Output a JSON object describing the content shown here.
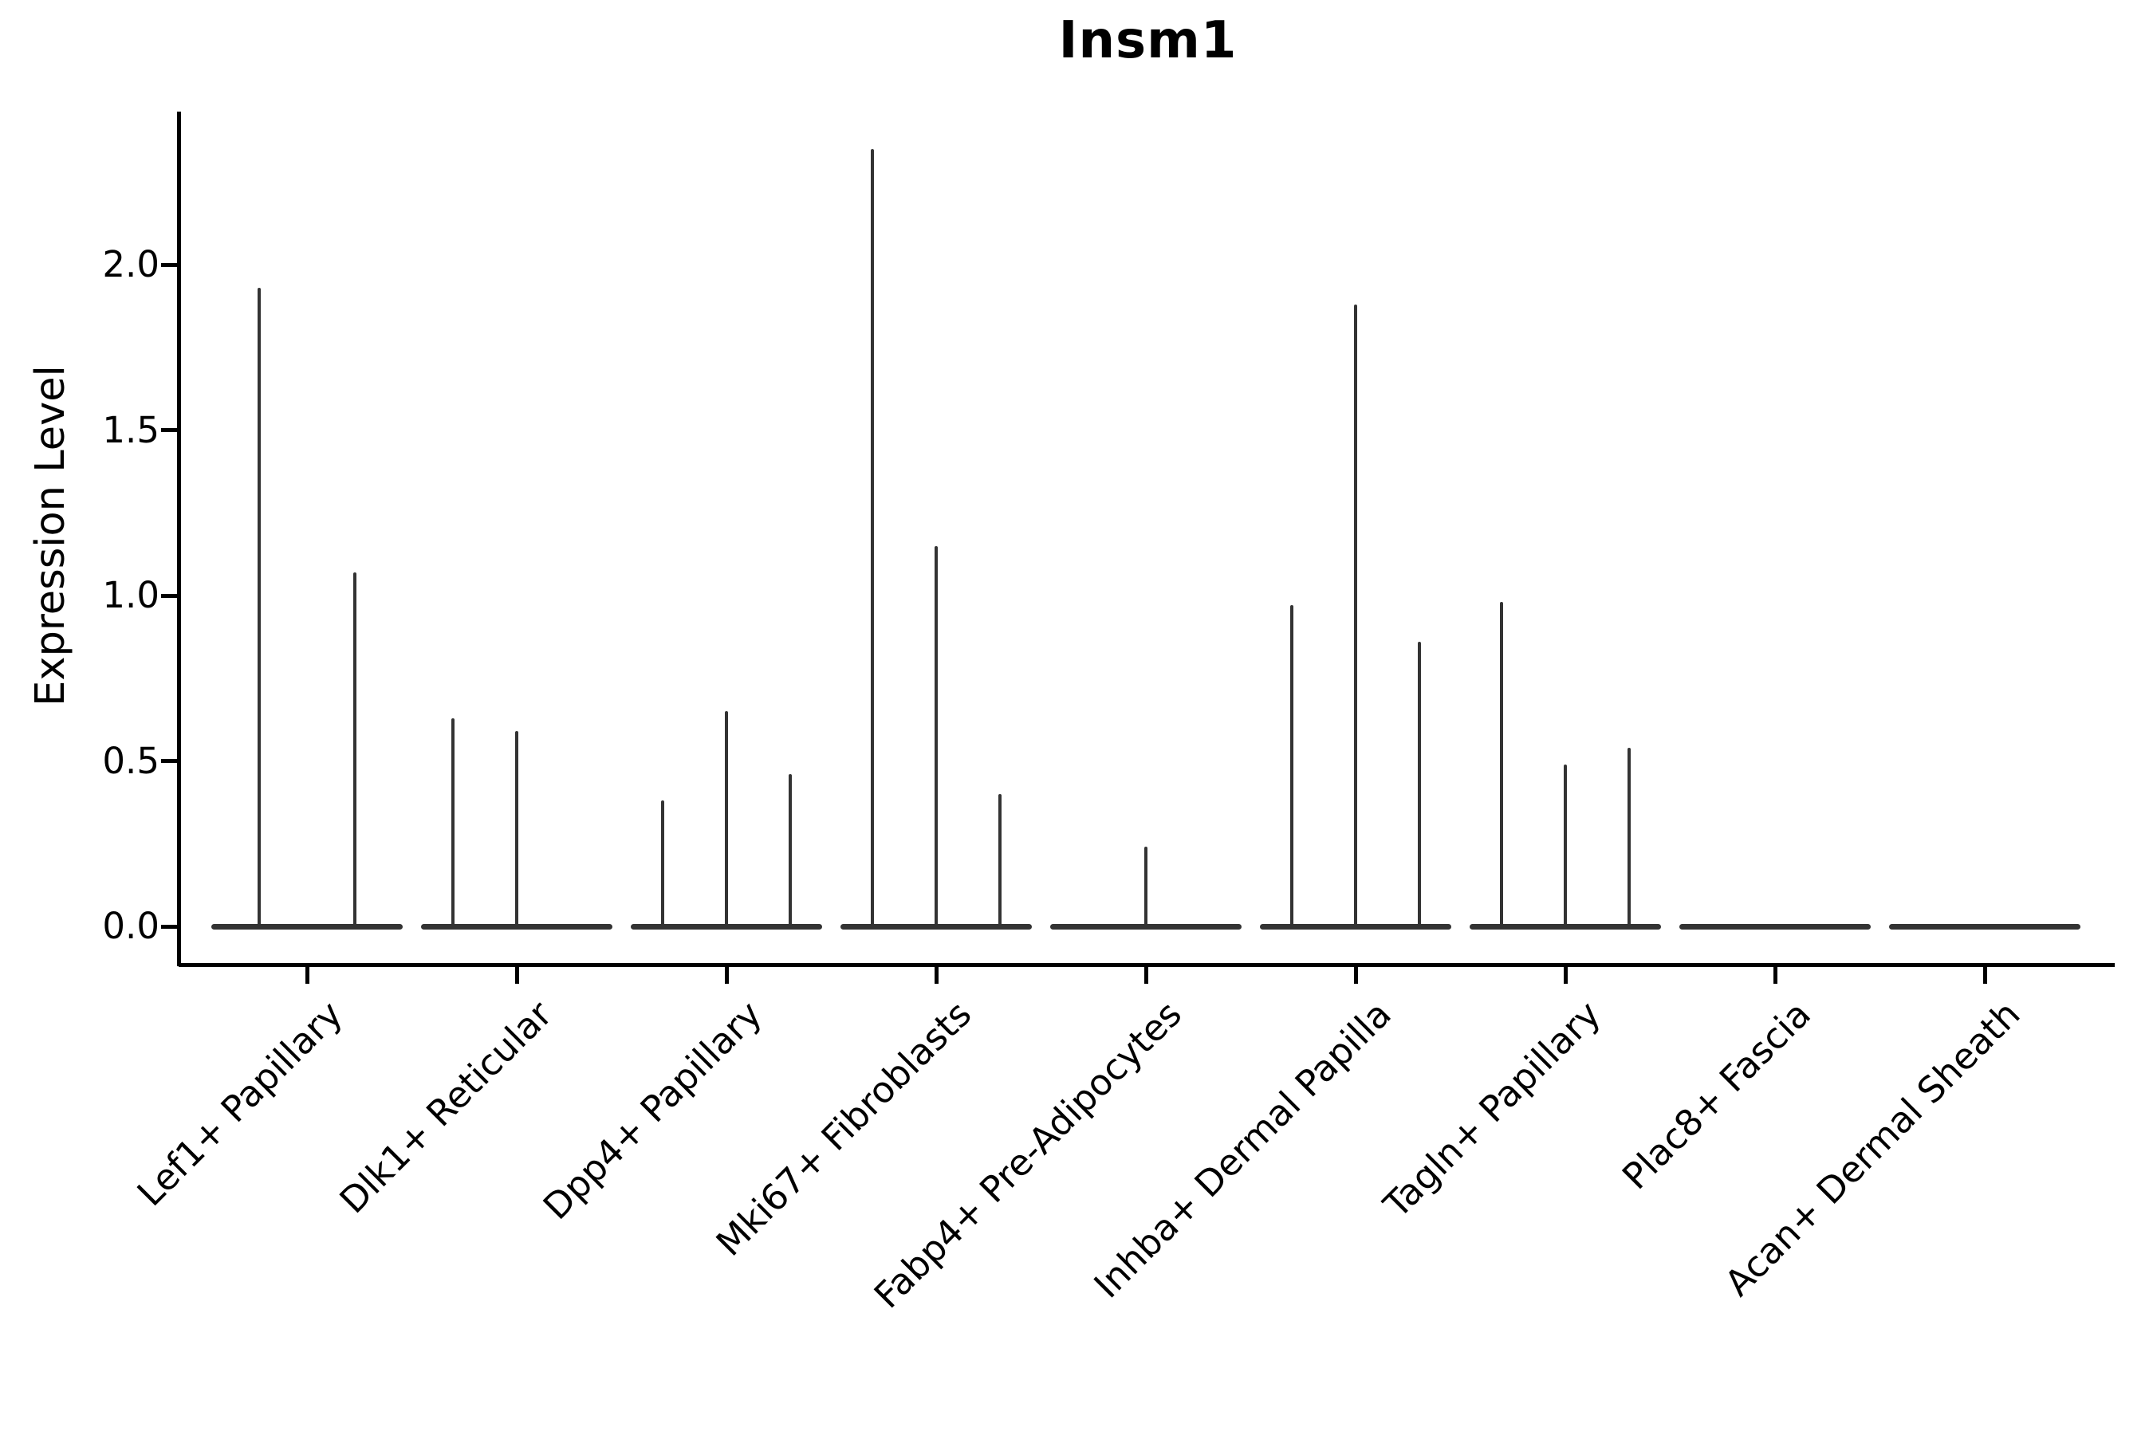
{
  "chart_data": {
    "type": "violin",
    "title": "Insm1",
    "ylabel": "Expression Level",
    "xlabel": "",
    "ylim": [
      -0.12,
      2.46
    ],
    "grid": false,
    "legend": "none",
    "violin_color": "#333333",
    "axis_color": "#000000",
    "yticks": [
      {
        "label": "0.0",
        "value": 0.0
      },
      {
        "label": "0.5",
        "value": 0.5
      },
      {
        "label": "1.0",
        "value": 1.0
      },
      {
        "label": "1.5",
        "value": 1.5
      },
      {
        "label": "2.0",
        "value": 2.0
      }
    ],
    "categories": [
      {
        "label": "Lef1+ Papillary",
        "violin_max_expression": [
          1.93,
          1.07
        ]
      },
      {
        "label": "Dlk1+ Reticular",
        "violin_max_expression": [
          0.63,
          0.59,
          0
        ]
      },
      {
        "label": "Dpp4+ Papillary",
        "violin_max_expression": [
          0.38,
          0.65,
          0.46
        ]
      },
      {
        "label": "Mki67+ Fibroblasts",
        "violin_max_expression": [
          2.35,
          1.15,
          0.4
        ]
      },
      {
        "label": "Fabp4+ Pre-Adipocytes",
        "violin_max_expression": [
          0,
          0.24,
          0
        ]
      },
      {
        "label": "Inhba+ Dermal Papilla",
        "violin_max_expression": [
          0.97,
          1.88,
          0.86
        ]
      },
      {
        "label": "Tagln+ Papillary",
        "violin_max_expression": [
          0.98,
          0.49,
          0.54
        ]
      },
      {
        "label": "Plac8+ Fascia",
        "violin_max_expression": [
          0,
          0,
          0
        ]
      },
      {
        "label": "Acan+ Dermal Sheath",
        "violin_max_expression": [
          0,
          0,
          0
        ]
      }
    ]
  }
}
